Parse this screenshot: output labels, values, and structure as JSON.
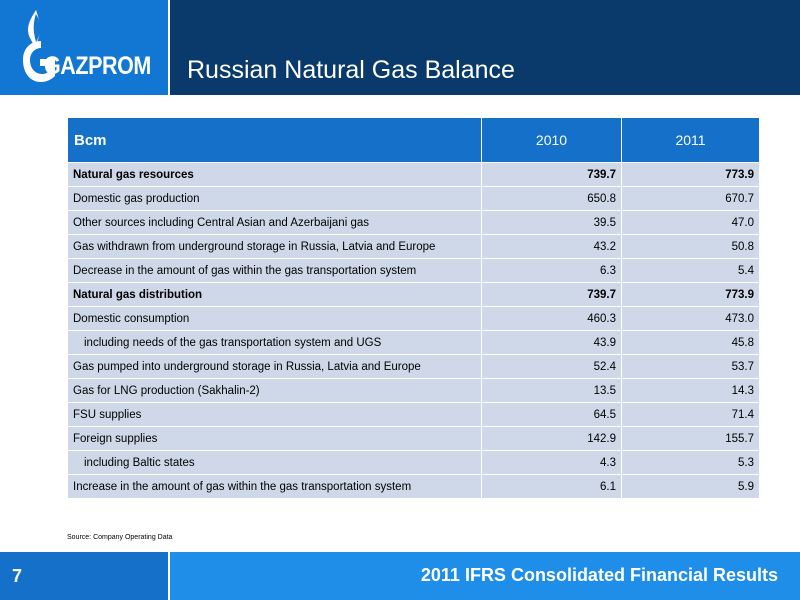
{
  "header": {
    "logo_text": "GAZPROM",
    "title": "Russian Natural Gas Balance"
  },
  "table": {
    "columns": [
      "Bcm",
      "2010",
      "2011"
    ],
    "rows": [
      {
        "label": "Natural gas resources",
        "v2010": "739.7",
        "v2011": "773.9",
        "bold": true,
        "indent": false
      },
      {
        "label": "Domestic gas production",
        "v2010": "650.8",
        "v2011": "670.7",
        "bold": false,
        "indent": false
      },
      {
        "label": "Other sources including Central Asian and Azerbaijani gas",
        "v2010": "39.5",
        "v2011": "47.0",
        "bold": false,
        "indent": false
      },
      {
        "label": "Gas withdrawn from underground storage in Russia, Latvia and Europe",
        "v2010": "43.2",
        "v2011": "50.8",
        "bold": false,
        "indent": false
      },
      {
        "label": "Decrease in the amount of gas within the gas transportation system",
        "v2010": "6.3",
        "v2011": "5.4",
        "bold": false,
        "indent": false
      },
      {
        "label": "Natural gas distribution",
        "v2010": "739.7",
        "v2011": "773.9",
        "bold": true,
        "indent": false
      },
      {
        "label": "Domestic consumption",
        "v2010": "460.3",
        "v2011": "473.0",
        "bold": false,
        "indent": false
      },
      {
        "label": "including needs of the gas transportation system and UGS",
        "v2010": "43.9",
        "v2011": "45.8",
        "bold": false,
        "indent": true
      },
      {
        "label": "Gas pumped into underground storage in Russia, Latvia and Europe",
        "v2010": "52.4",
        "v2011": "53.7",
        "bold": false,
        "indent": false
      },
      {
        "label": "Gas for LNG production (Sakhalin-2)",
        "v2010": "13.5",
        "v2011": "14.3",
        "bold": false,
        "indent": false
      },
      {
        "label": "FSU supplies",
        "v2010": "64.5",
        "v2011": "71.4",
        "bold": false,
        "indent": false
      },
      {
        "label": "Foreign supplies",
        "v2010": "142.9",
        "v2011": "155.7",
        "bold": false,
        "indent": false
      },
      {
        "label": "including Baltic states",
        "v2010": "4.3",
        "v2011": "5.3",
        "bold": false,
        "indent": true
      },
      {
        "label": "Increase in the amount of gas within the gas transportation system",
        "v2010": "6.1",
        "v2011": "5.9",
        "bold": false,
        "indent": false
      }
    ]
  },
  "source": "Source: Company Operating Data",
  "footer": {
    "page_number": "7",
    "title": "2011 IFRS Consolidated Financial Results"
  },
  "colors": {
    "header_dark": "#0a3a6b",
    "brand_blue": "#1177d2",
    "table_header": "#1470c8",
    "table_row": "#cfd8e8",
    "footer_blue": "#1f8ee8"
  }
}
